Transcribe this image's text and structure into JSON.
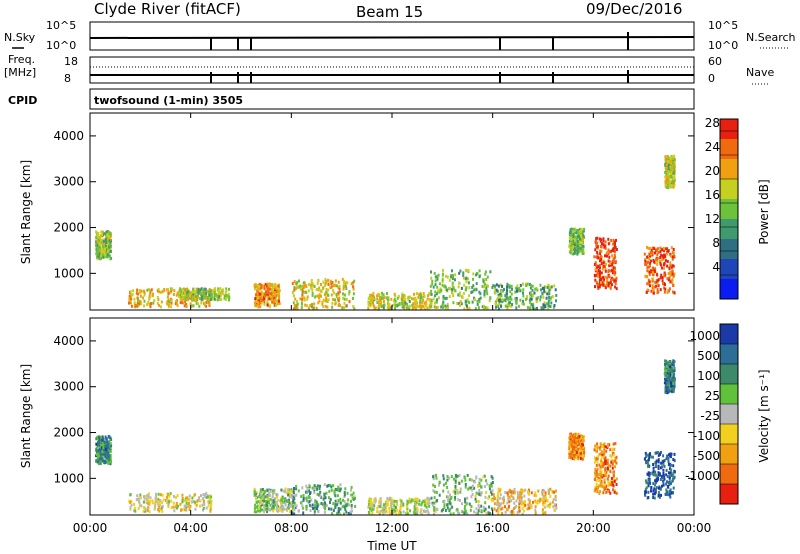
{
  "header": {
    "station": "Clyde River (fitACF)",
    "beam": "Beam 15",
    "date": "09/Dec/2016"
  },
  "summary_panels": {
    "nsky_label": "N.Sky",
    "nsearch_label": "N.Search",
    "nsky_ticks": [
      "10^5",
      "10^0"
    ],
    "nsearch_ticks": [
      "10^5",
      "10^0"
    ],
    "freq_label_line1": "Freq.",
    "freq_label_line2": "[MHz]",
    "freq_ticks": [
      "18",
      "8"
    ],
    "nave_label": "Nave",
    "nave_ticks": [
      "60",
      "0"
    ],
    "cpid_label": "CPID",
    "cpid_text": "twofsound (1-min) 3505"
  },
  "chart_data": [
    {
      "type": "heatmap",
      "panel": "power",
      "xlabel": "",
      "ylabel": "Slant Range [km]",
      "xlim": [
        0,
        24
      ],
      "ylim": [
        200,
        4500
      ],
      "x_ticks": [
        "00:00",
        "04:00",
        "08:00",
        "12:00",
        "16:00",
        "20:00",
        "00:00"
      ],
      "y_ticks": [
        "1000",
        "2000",
        "3000",
        "4000"
      ],
      "colorbar": {
        "label": "Power [dB]",
        "range": [
          0,
          30
        ],
        "ticks": [
          "4",
          "8",
          "12",
          "16",
          "20",
          "24",
          "28"
        ],
        "colors": [
          "#0a1cf0",
          "#1f46b8",
          "#2f6f82",
          "#3f9a6e",
          "#6cc23a",
          "#c6d020",
          "#f0a010",
          "#f06a10",
          "#e82010"
        ]
      },
      "regions": [
        {
          "t": [
            0.2,
            0.8
          ],
          "r": [
            1350,
            1950
          ],
          "level": 0.55
        },
        {
          "t": [
            1.5,
            4.8
          ],
          "r": [
            300,
            700
          ],
          "level": 0.7
        },
        {
          "t": [
            3.5,
            5.5
          ],
          "r": [
            450,
            700
          ],
          "level": 0.55
        },
        {
          "t": [
            6.5,
            7.5
          ],
          "r": [
            300,
            800
          ],
          "level": 0.75
        },
        {
          "t": [
            8.0,
            10.5
          ],
          "r": [
            250,
            900
          ],
          "level": 0.65
        },
        {
          "t": [
            11.0,
            13.5
          ],
          "r": [
            250,
            600
          ],
          "level": 0.6
        },
        {
          "t": [
            13.5,
            16.0
          ],
          "r": [
            250,
            1100
          ],
          "level": 0.5
        },
        {
          "t": [
            16.0,
            18.5
          ],
          "r": [
            250,
            800
          ],
          "level": 0.45
        },
        {
          "t": [
            19.0,
            19.6
          ],
          "r": [
            1450,
            2000
          ],
          "level": 0.5
        },
        {
          "t": [
            20.0,
            20.9
          ],
          "r": [
            700,
            1800
          ],
          "level": 0.9
        },
        {
          "t": [
            22.0,
            23.2
          ],
          "r": [
            600,
            1600
          ],
          "level": 0.85
        },
        {
          "t": [
            22.8,
            23.2
          ],
          "r": [
            2900,
            3600
          ],
          "level": 0.6
        }
      ]
    },
    {
      "type": "heatmap",
      "panel": "velocity",
      "xlabel": "Time UT",
      "ylabel": "Slant Range [km]",
      "xlim": [
        0,
        24
      ],
      "ylim": [
        200,
        4500
      ],
      "x_ticks": [
        "00:00",
        "04:00",
        "08:00",
        "12:00",
        "16:00",
        "20:00",
        "00:00"
      ],
      "y_ticks": [
        "1000",
        "2000",
        "3000",
        "4000"
      ],
      "colorbar": {
        "label": "Velocity [m s⁻¹]",
        "ticks": [
          "1000",
          "500",
          "100",
          "25",
          "-25",
          "-100",
          "-500",
          "-1000"
        ],
        "colors": [
          "#1a3aa8",
          "#2c6e96",
          "#3c8a6a",
          "#5fc23a",
          "#b8b8b8",
          "#f2d020",
          "#f0a010",
          "#f06a10",
          "#e82010"
        ]
      },
      "regions": [
        {
          "t": [
            0.2,
            0.8
          ],
          "r": [
            1350,
            1950
          ],
          "level": 0.25
        },
        {
          "t": [
            1.5,
            4.8
          ],
          "r": [
            300,
            700
          ],
          "level": 0.55
        },
        {
          "t": [
            6.5,
            8.0
          ],
          "r": [
            300,
            800
          ],
          "level": 0.45
        },
        {
          "t": [
            8.0,
            10.5
          ],
          "r": [
            250,
            900
          ],
          "level": 0.35
        },
        {
          "t": [
            11.0,
            13.5
          ],
          "r": [
            250,
            600
          ],
          "level": 0.5
        },
        {
          "t": [
            13.5,
            16.0
          ],
          "r": [
            250,
            1100
          ],
          "level": 0.4
        },
        {
          "t": [
            16.0,
            18.5
          ],
          "r": [
            250,
            800
          ],
          "level": 0.65
        },
        {
          "t": [
            19.0,
            19.6
          ],
          "r": [
            1450,
            2000
          ],
          "level": 0.75
        },
        {
          "t": [
            20.0,
            20.9
          ],
          "r": [
            700,
            1800
          ],
          "level": 0.78
        },
        {
          "t": [
            22.0,
            23.2
          ],
          "r": [
            600,
            1600
          ],
          "level": 0.12
        },
        {
          "t": [
            22.8,
            23.2
          ],
          "r": [
            2900,
            3600
          ],
          "level": 0.2
        }
      ]
    }
  ]
}
